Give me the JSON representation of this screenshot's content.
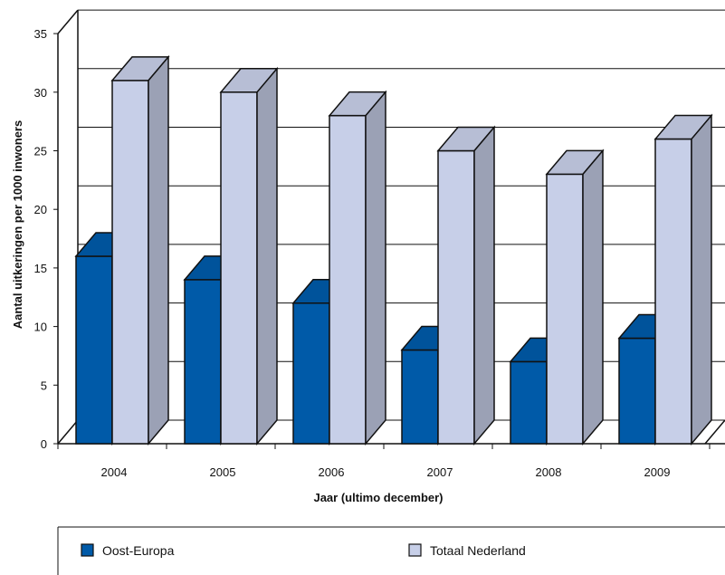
{
  "chart_data": {
    "type": "bar",
    "title": "",
    "xlabel": "Jaar (ultimo december)",
    "ylabel": "Aantal uitkeringen per 1000 inwoners",
    "categories": [
      "2004",
      "2005",
      "2006",
      "2007",
      "2008",
      "2009"
    ],
    "ylim": [
      0,
      35
    ],
    "yticks": [
      "0",
      "5",
      "10",
      "15",
      "20",
      "25",
      "30",
      "35"
    ],
    "grid": true,
    "legend_position": "bottom",
    "series": [
      {
        "name": "Oost-Europa",
        "values": [
          16,
          14,
          12,
          8,
          7,
          9
        ],
        "color": "#005aa8"
      },
      {
        "name": "Totaal Nederland",
        "values": [
          31,
          30,
          28,
          25,
          23,
          26
        ],
        "color": "#c7cfe8"
      }
    ]
  }
}
